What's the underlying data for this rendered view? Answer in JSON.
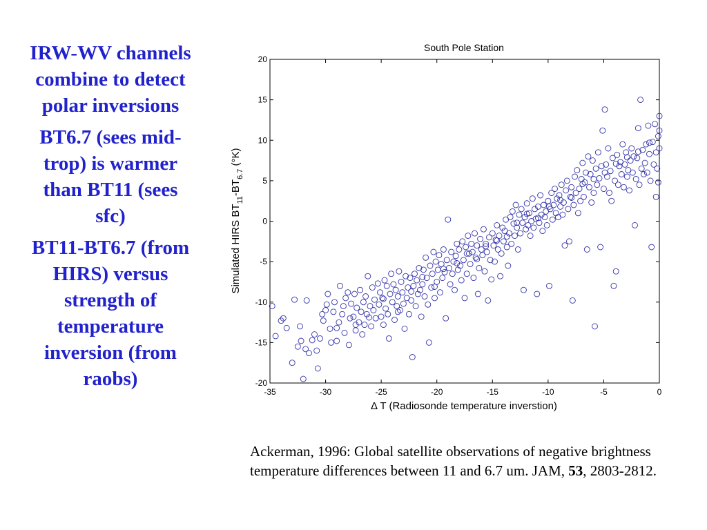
{
  "left_panel": {
    "paragraphs": [
      "IRW-WV channels combine to detect polar inversions",
      "BT6.7 (sees mid-trop) is warmer than BT11 (sees sfc)",
      "BT11-BT6.7 (from HIRS) versus strength of temperature inversion (from raobs)"
    ]
  },
  "citation": {
    "prefix": "Ackerman, 1996: Global satellite observations of negative brightness temperature differences between 11 and 6.7 um. JAM, ",
    "volume": "53",
    "suffix": ", 2803-2812."
  },
  "colors": {
    "left_text": "#2222cc",
    "markers": "#3333aa",
    "axes": "#000000"
  },
  "chart_data": {
    "type": "scatter",
    "title": "South Pole Station",
    "xlabel": "Δ T (Radiosonde temperature inverstion)",
    "ylabel": "Simulated HIRS  BT11-BT6.7 (°K)",
    "ylabel_parts": {
      "prefix": "Simulated HIRS  BT",
      "sub1": "11",
      "mid": "-BT",
      "sub2": "6.7",
      "suffix": " (°K)"
    },
    "xlim": [
      -35,
      0
    ],
    "ylim": [
      -20,
      20
    ],
    "xticks": [
      -35,
      -30,
      -25,
      -20,
      -15,
      -10,
      -5,
      0
    ],
    "yticks": [
      -20,
      -15,
      -10,
      -5,
      0,
      5,
      10,
      15,
      20
    ],
    "marker": "open-circle",
    "grid": false,
    "points": [
      [
        -34.8,
        -10.5
      ],
      [
        -34.5,
        -14.2
      ],
      [
        -34.0,
        -12.3
      ],
      [
        -33.8,
        -12.0
      ],
      [
        -33.5,
        -13.2
      ],
      [
        -33.0,
        -17.5
      ],
      [
        -32.8,
        -9.7
      ],
      [
        -32.5,
        -15.5
      ],
      [
        -32.3,
        -13.0
      ],
      [
        -32.2,
        -14.8
      ],
      [
        -32.0,
        -19.5
      ],
      [
        -31.7,
        -9.8
      ],
      [
        -31.5,
        -16.3
      ],
      [
        -31.2,
        -14.7
      ],
      [
        -31.0,
        -14.0
      ],
      [
        -30.7,
        -18.2
      ],
      [
        -30.5,
        -14.5
      ],
      [
        -30.3,
        -11.5
      ],
      [
        -30.2,
        -12.3
      ],
      [
        -30.0,
        -11.0
      ],
      [
        -29.9,
        -10.3
      ],
      [
        -29.8,
        -9.0
      ],
      [
        -29.6,
        -13.3
      ],
      [
        -29.5,
        -15.0
      ],
      [
        -29.3,
        -11.2
      ],
      [
        -29.2,
        -10.0
      ],
      [
        -29.0,
        -14.8
      ],
      [
        -28.8,
        -12.5
      ],
      [
        -28.7,
        -8.0
      ],
      [
        -28.5,
        -11.5
      ],
      [
        -28.4,
        -10.5
      ],
      [
        -28.3,
        -13.8
      ],
      [
        -28.2,
        -9.5
      ],
      [
        -28.0,
        -8.8
      ],
      [
        -27.9,
        -15.3
      ],
      [
        -27.8,
        -12.0
      ],
      [
        -27.7,
        -10.2
      ],
      [
        -27.5,
        -11.8
      ],
      [
        -27.4,
        -9.0
      ],
      [
        -27.3,
        -13.5
      ],
      [
        -27.2,
        -10.7
      ],
      [
        -27.0,
        -12.5
      ],
      [
        -26.9,
        -8.5
      ],
      [
        -26.8,
        -11.2
      ],
      [
        -26.7,
        -14.0
      ],
      [
        -26.6,
        -10.0
      ],
      [
        -26.5,
        -12.8
      ],
      [
        -26.4,
        -9.3
      ],
      [
        -26.3,
        -11.5
      ],
      [
        -26.2,
        -6.8
      ],
      [
        -26.0,
        -10.5
      ],
      [
        -25.9,
        -13.0
      ],
      [
        -25.8,
        -8.2
      ],
      [
        -25.7,
        -11.0
      ],
      [
        -25.6,
        -9.7
      ],
      [
        -25.5,
        -12.0
      ],
      [
        -25.3,
        -7.7
      ],
      [
        -25.2,
        -10.3
      ],
      [
        -25.1,
        -8.8
      ],
      [
        -25.0,
        -11.8
      ],
      [
        -24.9,
        -9.5
      ],
      [
        -24.8,
        -12.8
      ],
      [
        -24.7,
        -7.3
      ],
      [
        -24.6,
        -10.8
      ],
      [
        -24.5,
        -8.0
      ],
      [
        -24.4,
        -11.5
      ],
      [
        -24.3,
        -14.5
      ],
      [
        -24.2,
        -9.0
      ],
      [
        -24.1,
        -6.5
      ],
      [
        -24.0,
        -10.0
      ],
      [
        -23.9,
        -7.8
      ],
      [
        -23.8,
        -12.2
      ],
      [
        -23.7,
        -8.5
      ],
      [
        -23.6,
        -10.5
      ],
      [
        -23.5,
        -9.3
      ],
      [
        -23.4,
        -6.2
      ],
      [
        -23.3,
        -11.0
      ],
      [
        -23.2,
        -7.5
      ],
      [
        -23.1,
        -8.8
      ],
      [
        -23.0,
        -10.2
      ],
      [
        -22.9,
        -13.3
      ],
      [
        -22.8,
        -6.8
      ],
      [
        -22.7,
        -9.5
      ],
      [
        -22.6,
        -8.2
      ],
      [
        -22.5,
        -11.5
      ],
      [
        -22.4,
        -7.0
      ],
      [
        -22.3,
        -9.8
      ],
      [
        -22.2,
        -16.8
      ],
      [
        -22.1,
        -8.0
      ],
      [
        -22.0,
        -6.5
      ],
      [
        -21.9,
        -10.5
      ],
      [
        -21.8,
        -7.3
      ],
      [
        -21.7,
        -9.0
      ],
      [
        -21.6,
        -5.8
      ],
      [
        -21.5,
        -8.5
      ],
      [
        -21.4,
        -11.8
      ],
      [
        -21.3,
        -7.8
      ],
      [
        -21.2,
        -6.0
      ],
      [
        -21.1,
        -9.3
      ],
      [
        -21.0,
        -4.5
      ],
      [
        -20.9,
        -7.0
      ],
      [
        -20.8,
        -10.3
      ],
      [
        -20.7,
        -15.0
      ],
      [
        -20.6,
        -5.5
      ],
      [
        -20.5,
        -8.2
      ],
      [
        -20.4,
        -6.5
      ],
      [
        -20.3,
        -3.8
      ],
      [
        -20.2,
        -9.5
      ],
      [
        -20.1,
        -5.0
      ],
      [
        -20.0,
        -7.5
      ],
      [
        -19.9,
        -6.0
      ],
      [
        -19.8,
        -4.2
      ],
      [
        -19.7,
        -8.8
      ],
      [
        -19.6,
        -5.3
      ],
      [
        -19.5,
        -7.0
      ],
      [
        -19.4,
        -3.5
      ],
      [
        -19.3,
        -6.3
      ],
      [
        -19.2,
        -12.0
      ],
      [
        -19.1,
        -4.8
      ],
      [
        -19.0,
        0.2
      ],
      [
        -18.9,
        -5.8
      ],
      [
        -18.8,
        -7.8
      ],
      [
        -18.7,
        -3.8
      ],
      [
        -18.6,
        -6.5
      ],
      [
        -18.5,
        -5.0
      ],
      [
        -18.4,
        -8.5
      ],
      [
        -18.3,
        -4.3
      ],
      [
        -18.2,
        -2.8
      ],
      [
        -18.1,
        -6.0
      ],
      [
        -18.0,
        -3.5
      ],
      [
        -17.9,
        -5.5
      ],
      [
        -17.8,
        -7.3
      ],
      [
        -17.7,
        -2.5
      ],
      [
        -17.6,
        -4.8
      ],
      [
        -17.5,
        -9.5
      ],
      [
        -17.4,
        -3.2
      ],
      [
        -17.3,
        -6.5
      ],
      [
        -17.2,
        -1.8
      ],
      [
        -17.1,
        -4.0
      ],
      [
        -17.0,
        -5.3
      ],
      [
        -16.9,
        -2.8
      ],
      [
        -16.8,
        -3.8
      ],
      [
        -16.7,
        -7.0
      ],
      [
        -16.6,
        -1.5
      ],
      [
        -16.5,
        -4.5
      ],
      [
        -16.4,
        -3.0
      ],
      [
        -16.3,
        -9.0
      ],
      [
        -16.2,
        -5.8
      ],
      [
        -16.1,
        -2.2
      ],
      [
        -16.0,
        -3.5
      ],
      [
        -15.9,
        -4.2
      ],
      [
        -15.8,
        -1.0
      ],
      [
        -15.7,
        -6.2
      ],
      [
        -15.6,
        -2.8
      ],
      [
        -15.5,
        -3.8
      ],
      [
        -15.4,
        -9.8
      ],
      [
        -15.3,
        -2.0
      ],
      [
        -15.2,
        -4.8
      ],
      [
        -15.1,
        -7.2
      ],
      [
        -15.0,
        -1.5
      ],
      [
        -14.9,
        -3.0
      ],
      [
        -14.8,
        -5.0
      ],
      [
        -14.7,
        -2.3
      ],
      [
        -14.6,
        -0.5
      ],
      [
        -14.5,
        -3.5
      ],
      [
        -14.4,
        -1.8
      ],
      [
        -14.3,
        -6.8
      ],
      [
        -14.2,
        -4.0
      ],
      [
        -14.1,
        -0.8
      ],
      [
        -14.0,
        -2.5
      ],
      [
        -13.9,
        -1.2
      ],
      [
        -13.8,
        0.2
      ],
      [
        -13.7,
        -3.2
      ],
      [
        -13.6,
        -5.5
      ],
      [
        -13.5,
        -1.5
      ],
      [
        -13.4,
        0.5
      ],
      [
        -13.3,
        -2.8
      ],
      [
        -13.2,
        1.2
      ],
      [
        -13.1,
        -0.3
      ],
      [
        -13.0,
        -1.8
      ],
      [
        -12.9,
        2.0
      ],
      [
        -12.8,
        -0.8
      ],
      [
        -12.7,
        -3.5
      ],
      [
        -12.6,
        0.8
      ],
      [
        -12.5,
        -1.5
      ],
      [
        -12.4,
        1.5
      ],
      [
        -12.3,
        -0.2
      ],
      [
        -12.2,
        -8.5
      ],
      [
        -12.1,
        0.5
      ],
      [
        -12.0,
        -1.0
      ],
      [
        -11.9,
        2.2
      ],
      [
        -11.8,
        -0.5
      ],
      [
        -11.7,
        1.0
      ],
      [
        -11.6,
        -1.8
      ],
      [
        -11.5,
        0.0
      ],
      [
        -11.4,
        2.8
      ],
      [
        -11.3,
        -0.8
      ],
      [
        -11.2,
        1.5
      ],
      [
        -11.1,
        0.3
      ],
      [
        -11.0,
        -9.0
      ],
      [
        -10.9,
        1.8
      ],
      [
        -10.8,
        -0.2
      ],
      [
        -10.7,
        3.2
      ],
      [
        -10.6,
        0.8
      ],
      [
        -10.5,
        -1.2
      ],
      [
        -10.4,
        2.0
      ],
      [
        -10.3,
        0.5
      ],
      [
        -10.2,
        1.2
      ],
      [
        -10.1,
        -0.5
      ],
      [
        -10.0,
        2.5
      ],
      [
        -9.9,
        -8.0
      ],
      [
        -9.8,
        1.5
      ],
      [
        -9.7,
        3.5
      ],
      [
        -9.6,
        0.2
      ],
      [
        -9.5,
        2.0
      ],
      [
        -9.4,
        4.0
      ],
      [
        -9.3,
        1.0
      ],
      [
        -9.2,
        2.8
      ],
      [
        -9.1,
        0.5
      ],
      [
        -9.0,
        3.2
      ],
      [
        -8.9,
        1.8
      ],
      [
        -8.8,
        4.5
      ],
      [
        -8.7,
        0.8
      ],
      [
        -8.6,
        2.3
      ],
      [
        -8.5,
        -3.0
      ],
      [
        -8.4,
        3.8
      ],
      [
        -8.3,
        5.0
      ],
      [
        -8.2,
        1.5
      ],
      [
        -8.1,
        -2.5
      ],
      [
        -8.0,
        3.0
      ],
      [
        -7.9,
        4.2
      ],
      [
        -7.8,
        -9.8
      ],
      [
        -7.7,
        2.0
      ],
      [
        -7.6,
        5.5
      ],
      [
        -7.5,
        3.5
      ],
      [
        -7.4,
        6.3
      ],
      [
        -7.3,
        1.0
      ],
      [
        -7.2,
        4.0
      ],
      [
        -7.1,
        2.5
      ],
      [
        -7.0,
        5.2
      ],
      [
        -6.9,
        7.2
      ],
      [
        -6.8,
        3.0
      ],
      [
        -6.7,
        4.8
      ],
      [
        -6.6,
        6.0
      ],
      [
        -6.5,
        -3.5
      ],
      [
        -6.4,
        8.0
      ],
      [
        -6.3,
        4.2
      ],
      [
        -6.2,
        5.8
      ],
      [
        -6.1,
        2.3
      ],
      [
        -6.0,
        7.5
      ],
      [
        -5.9,
        3.5
      ],
      [
        -5.8,
        -13.0
      ],
      [
        -5.7,
        6.5
      ],
      [
        -5.6,
        4.5
      ],
      [
        -5.5,
        8.5
      ],
      [
        -5.4,
        5.3
      ],
      [
        -5.3,
        -3.2
      ],
      [
        -5.2,
        6.8
      ],
      [
        -5.1,
        11.2
      ],
      [
        -5.0,
        4.0
      ],
      [
        -4.9,
        13.8
      ],
      [
        -4.8,
        7.0
      ],
      [
        -4.7,
        5.5
      ],
      [
        -4.6,
        9.0
      ],
      [
        -4.5,
        3.5
      ],
      [
        -4.4,
        6.2
      ],
      [
        -4.3,
        2.5
      ],
      [
        -4.2,
        7.8
      ],
      [
        -4.1,
        -8.0
      ],
      [
        -4.0,
        5.0
      ],
      [
        -3.9,
        -6.2
      ],
      [
        -3.8,
        8.2
      ],
      [
        -3.7,
        4.5
      ],
      [
        -3.6,
        6.8
      ],
      [
        -3.5,
        7.3
      ],
      [
        -3.4,
        5.8
      ],
      [
        -3.3,
        9.5
      ],
      [
        -3.2,
        4.2
      ],
      [
        -3.1,
        7.0
      ],
      [
        -3.0,
        8.5
      ],
      [
        -2.9,
        5.5
      ],
      [
        -2.8,
        6.3
      ],
      [
        -2.7,
        3.8
      ],
      [
        -2.6,
        7.5
      ],
      [
        -2.5,
        9.0
      ],
      [
        -2.4,
        6.0
      ],
      [
        -2.3,
        8.0
      ],
      [
        -2.2,
        -0.5
      ],
      [
        -2.1,
        5.2
      ],
      [
        -2.0,
        7.8
      ],
      [
        -1.9,
        11.5
      ],
      [
        -1.8,
        4.5
      ],
      [
        -1.7,
        15.0
      ],
      [
        -1.6,
        6.5
      ],
      [
        -1.5,
        8.8
      ],
      [
        -1.4,
        5.8
      ],
      [
        -1.3,
        7.2
      ],
      [
        -1.2,
        9.5
      ],
      [
        -1.1,
        6.0
      ],
      [
        -1.0,
        11.8
      ],
      [
        -0.9,
        8.3
      ],
      [
        -0.8,
        5.0
      ],
      [
        -0.7,
        -3.2
      ],
      [
        -0.6,
        9.8
      ],
      [
        -0.5,
        7.0
      ],
      [
        -0.4,
        12.0
      ],
      [
        -0.3,
        8.5
      ],
      [
        -0.2,
        6.5
      ],
      [
        -0.1,
        10.5
      ],
      [
        0.0,
        13.0
      ],
      [
        0.0,
        9.0
      ],
      [
        0.0,
        11.2
      ],
      [
        -0.1,
        4.8
      ],
      [
        -0.3,
        3.0
      ],
      [
        -31.8,
        -15.8
      ],
      [
        -30.8,
        -16.0
      ],
      [
        -29.0,
        -13.2
      ],
      [
        -27.3,
        -12.8
      ],
      [
        -26.1,
        -11.9
      ],
      [
        -24.8,
        -9.6
      ],
      [
        -23.5,
        -11.2
      ],
      [
        -22.3,
        -8.7
      ],
      [
        -21.3,
        -6.9
      ],
      [
        -20.2,
        -8.1
      ],
      [
        -19.4,
        -5.9
      ],
      [
        -18.2,
        -5.2
      ],
      [
        -17.3,
        -4.0
      ],
      [
        -16.4,
        -4.7
      ],
      [
        -15.6,
        -3.1
      ],
      [
        -14.6,
        -2.4
      ],
      [
        -13.7,
        -1.9
      ],
      [
        -12.8,
        -0.2
      ],
      [
        -11.9,
        0.9
      ],
      [
        -10.9,
        0.4
      ],
      [
        -9.9,
        1.8
      ],
      [
        -8.9,
        2.6
      ],
      [
        -7.9,
        2.9
      ],
      [
        -6.9,
        4.6
      ],
      [
        -5.9,
        5.2
      ],
      [
        -4.9,
        6.0
      ],
      [
        -3.9,
        7.1
      ],
      [
        -2.9,
        7.9
      ],
      [
        -1.9,
        8.6
      ],
      [
        -0.9,
        9.7
      ]
    ]
  }
}
